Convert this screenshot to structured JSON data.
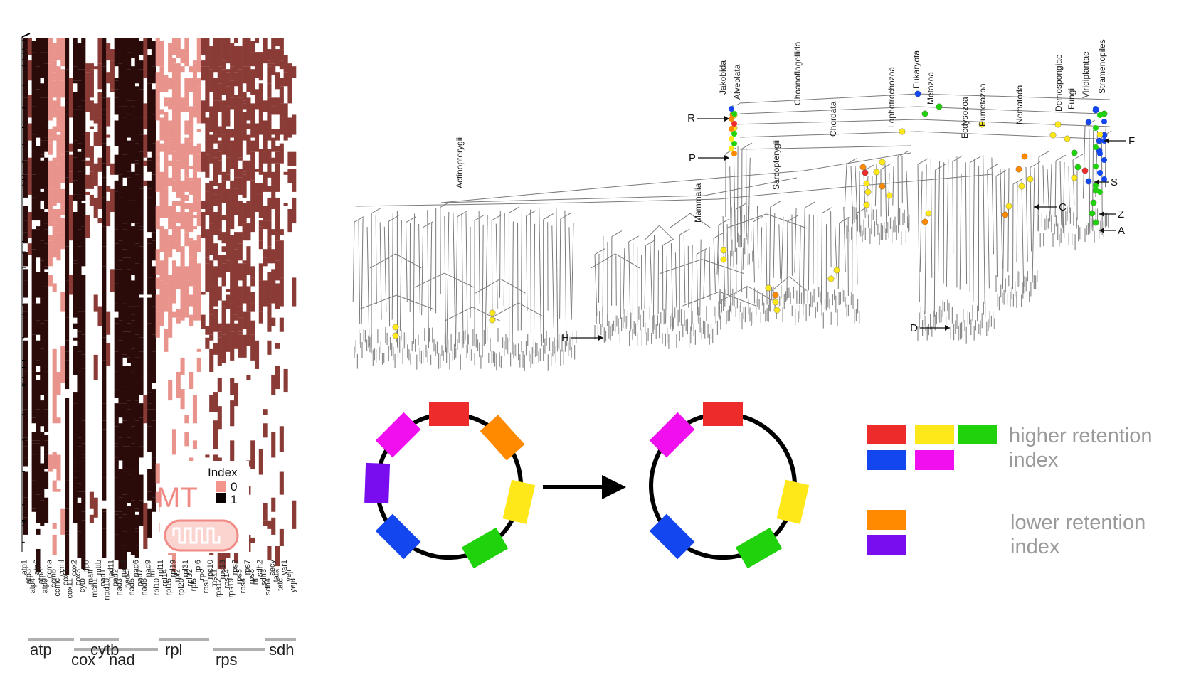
{
  "heatmap": {
    "legend_title": "Index",
    "legend_values": [
      "0",
      "1"
    ],
    "badge_text": "MT",
    "colors": {
      "low": "#e8948c",
      "high": "#2b0a0a",
      "mid": "#8a3b36",
      "badge": "#f08a84"
    },
    "genes": [
      "atp1",
      "atp3",
      "atp4",
      "atp6",
      "atp8",
      "atp9",
      "ccma",
      "ccmb",
      "ccmc",
      "ccmf",
      "cox1",
      "cox11",
      "cox2",
      "cox3",
      "cytb",
      "dpo",
      "matr",
      "msh1",
      "mttb",
      "nad1",
      "nad10",
      "nad11",
      "nad2",
      "nad3",
      "nad4",
      "nad4l",
      "nad5",
      "nad6",
      "nad7",
      "nad8",
      "nad9",
      "rnl",
      "rpl10",
      "rpl11",
      "rpl14",
      "rpl16",
      "rpl19",
      "rpl2",
      "rpl20",
      "rpl31",
      "rpl32",
      "rpl5",
      "rpl6",
      "rpo",
      "rps1",
      "rps10",
      "rps11",
      "rps12",
      "rps13",
      "rps14",
      "rps19",
      "rps2",
      "rps3",
      "rps4",
      "rps7",
      "rps8",
      "rtl",
      "sdh2",
      "sdh3",
      "sdh4",
      "secy",
      "tata",
      "tatc",
      "var1",
      "yejr",
      "yeju"
    ],
    "groups": [
      "atp",
      "cox",
      "cytb",
      "nad",
      "rpl",
      "rps",
      "sdh"
    ]
  },
  "tree": {
    "clades": [
      "Actinopterygii",
      "Mammalia",
      "Sarcopterygii",
      "Chordata",
      "Choanoflagellida",
      "Jakobida",
      "Alveolata",
      "Lophotrochozoa",
      "Eukaryota",
      "Metazoa",
      "Ecdysozoa",
      "Eumetazoa",
      "Nematoda",
      "Demospongiae",
      "Fungi",
      "Viridiplantae",
      "Stramenopiles"
    ],
    "markers": [
      "R",
      "P",
      "H",
      "D",
      "C",
      "F",
      "S",
      "Z",
      "A"
    ]
  },
  "genome_diagram": {
    "segment_colors": {
      "red": "#ee2b2b",
      "orange": "#ff8a00",
      "yellow": "#ffe81a",
      "green": "#20d20c",
      "blue": "#1446f0",
      "magenta": "#f10ff0",
      "purple": "#7a0df0"
    }
  },
  "legend": {
    "higher_label": [
      "higher retention",
      "index"
    ],
    "lower_label": [
      "lower retention",
      "index"
    ],
    "text_color": "#9a9a9a"
  }
}
